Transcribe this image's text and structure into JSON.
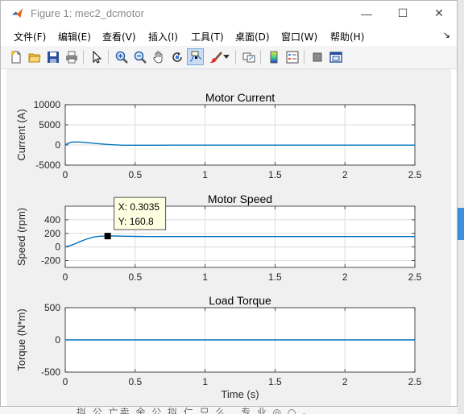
{
  "window": {
    "title": "Figure 1: mec2_dcmotor",
    "controls": {
      "minimize": "—",
      "maximize": "☐",
      "close": "✕"
    }
  },
  "menu": {
    "items": [
      "文件(F)",
      "编辑(E)",
      "查看(V)",
      "插入(I)",
      "工具(T)",
      "桌面(D)",
      "窗口(W)",
      "帮助(H)"
    ],
    "overflow": "↘"
  },
  "toolbar": {
    "icons": [
      "new-figure-icon",
      "open-file-icon",
      "save-icon",
      "print-icon",
      "select-arrow-icon",
      "zoom-in-icon",
      "zoom-out-icon",
      "pan-hand-icon",
      "rotate-3d-icon",
      "data-cursor-icon",
      "brush-icon",
      "brush-dropdown-icon",
      "link-plot-icon",
      "colorbar-icon",
      "legend-icon",
      "hide-plot-tools-icon",
      "show-plot-tools-icon"
    ],
    "active": "data-cursor-icon"
  },
  "colors": {
    "line": "#0072bd",
    "grid": "#dcdcdc",
    "axes": "#262626",
    "canvas": "#f0f0f0"
  },
  "chart_data": [
    {
      "type": "line",
      "title": "Motor Current",
      "xlabel": "",
      "ylabel": "Current (A)",
      "xlim": [
        0,
        2.5
      ],
      "ylim": [
        -5000,
        10000
      ],
      "xticks": [
        "0",
        "0.5",
        "1",
        "1.5",
        "2",
        "2.5"
      ],
      "yticks": [
        "10000",
        "5000",
        "0",
        "-5000"
      ],
      "grid": true,
      "series": [
        {
          "x": [
            0,
            0.02,
            0.05,
            0.1,
            0.15,
            0.2,
            0.25,
            0.3,
            0.35,
            0.4,
            0.45,
            0.5,
            0.6,
            0.8,
            1.0,
            1.5,
            2.0,
            2.5
          ],
          "y": [
            0,
            450,
            750,
            750,
            620,
            450,
            280,
            140,
            40,
            -30,
            -60,
            -70,
            -60,
            -45,
            -40,
            -40,
            -40,
            -40
          ]
        }
      ]
    },
    {
      "type": "line",
      "title": "Motor Speed",
      "xlabel": "",
      "ylabel": "Speed (rpm)",
      "xlim": [
        0,
        2.5
      ],
      "ylim": [
        -300,
        600
      ],
      "xticks": [
        "0",
        "0.5",
        "1",
        "1.5",
        "2",
        "2.5"
      ],
      "yticks": [
        "400",
        "200",
        "0",
        "-200"
      ],
      "grid": true,
      "series": [
        {
          "x": [
            0,
            0.05,
            0.1,
            0.15,
            0.2,
            0.25,
            0.3035,
            0.35,
            0.4,
            0.5,
            0.6,
            0.8,
            1.0,
            1.5,
            2.0,
            2.5
          ],
          "y": [
            0,
            30,
            75,
            115,
            145,
            160,
            160.8,
            162,
            160,
            156,
            154,
            153,
            153,
            153,
            153,
            153
          ]
        }
      ],
      "datatip": {
        "x_label": "X: 0.3035",
        "y_label": "Y: 160.8",
        "x": 0.3035,
        "y": 160.8
      }
    },
    {
      "type": "line",
      "title": "Load Torque",
      "xlabel": "Time (s)",
      "ylabel": "Torque (N*m)",
      "xlim": [
        0,
        2.5
      ],
      "ylim": [
        -500,
        500
      ],
      "xticks": [
        "0",
        "0.5",
        "1",
        "1.5",
        "2",
        "2.5"
      ],
      "yticks": [
        "500",
        "0",
        "-500"
      ],
      "grid": true,
      "series": [
        {
          "x": [
            0,
            2.5
          ],
          "y": [
            0,
            0
          ]
        }
      ]
    }
  ],
  "background": {
    "partial_text": "拟 公 亡卖 余 公 拟 仁 只 么 . 专 业 ◎ ○ 。"
  }
}
